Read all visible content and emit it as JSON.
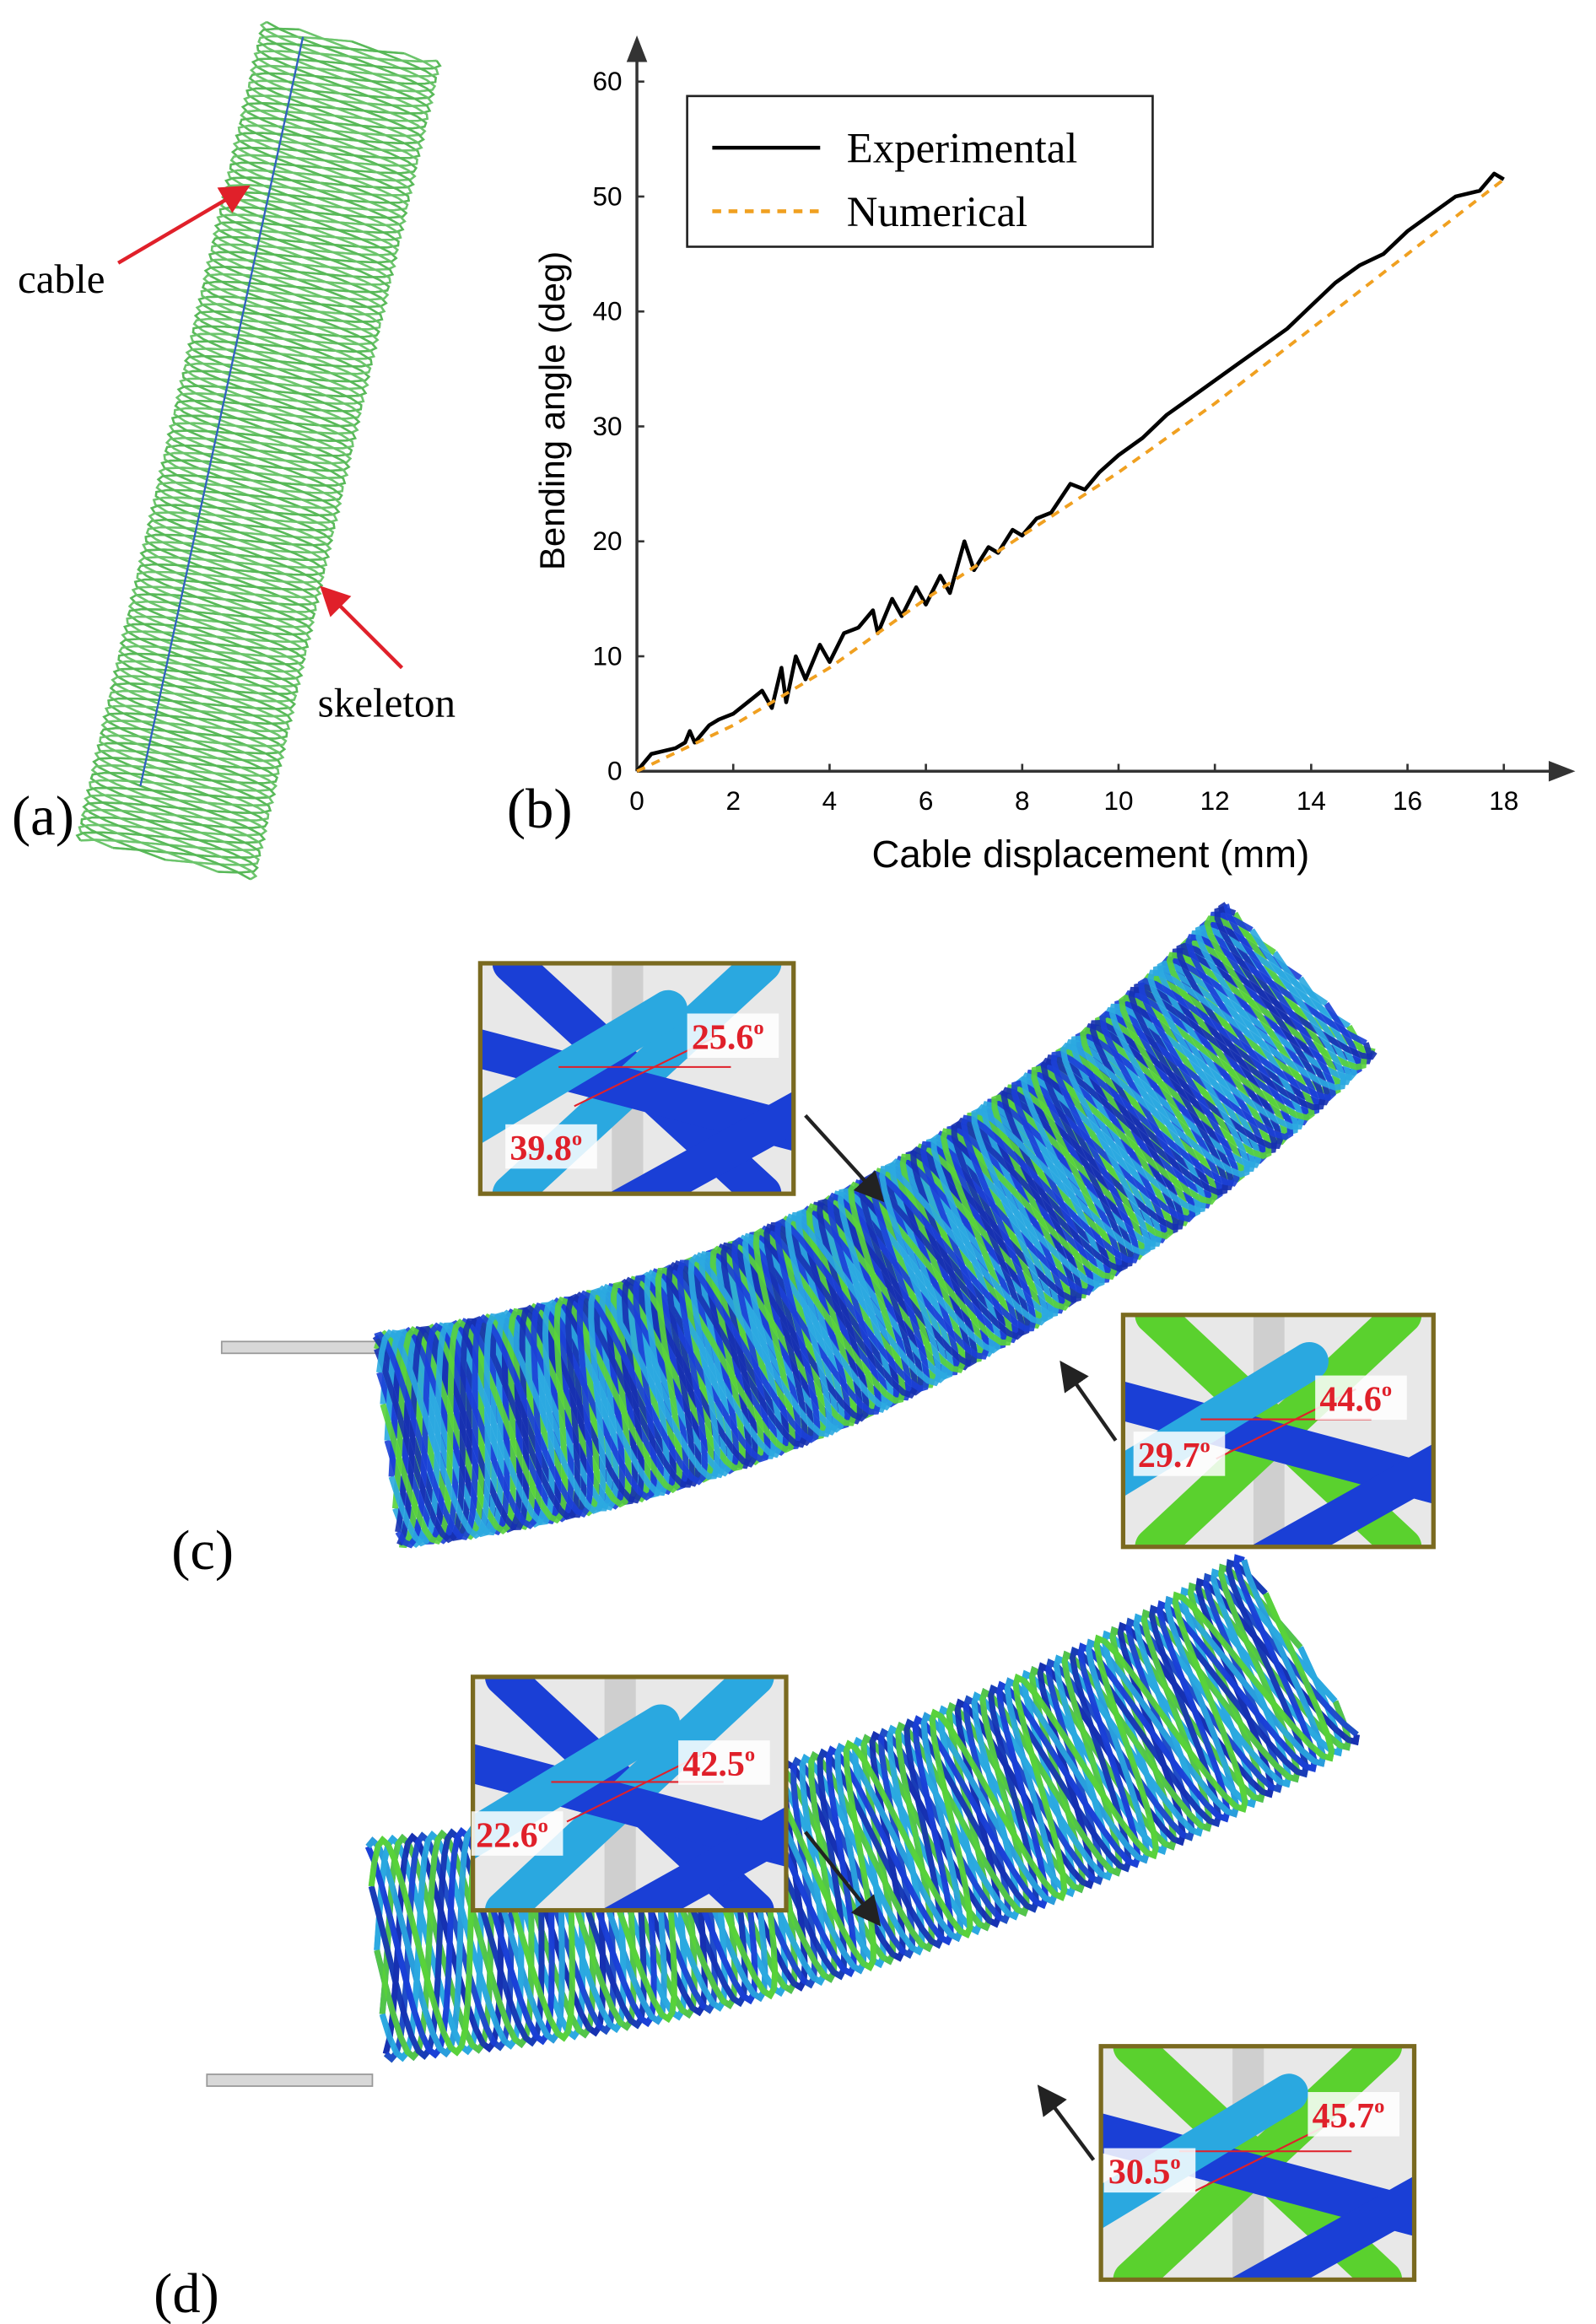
{
  "chart_data": {
    "type": "line",
    "x_label": "Cable displacement (mm)",
    "y_label": "Bending angle (deg)",
    "xlim": [
      0,
      19.3
    ],
    "ylim": [
      0,
      63.5
    ],
    "xticks": [
      0,
      2,
      4,
      6,
      8,
      10,
      12,
      14,
      16,
      18
    ],
    "yticks": [
      0,
      10,
      20,
      30,
      40,
      50,
      60
    ],
    "legend": "top-left",
    "grid": false,
    "series": [
      {
        "name": "Experimental",
        "color": "#000000",
        "dashed": false,
        "x": [
          0,
          0.3,
          0.8,
          1,
          1.1,
          1.2,
          1.5,
          1.7,
          2,
          2.3,
          2.6,
          2.8,
          3,
          3.1,
          3.3,
          3.5,
          3.8,
          4,
          4.3,
          4.6,
          4.9,
          5,
          5.3,
          5.5,
          5.8,
          6,
          6.3,
          6.5,
          6.8,
          7,
          7.3,
          7.5,
          7.8,
          8,
          8.3,
          8.6,
          9,
          9.3,
          9.6,
          10,
          10.5,
          11,
          11.5,
          12,
          12.5,
          13,
          13.5,
          14,
          14.5,
          15,
          15.5,
          16,
          16.5,
          17,
          17.5,
          17.8,
          18
        ],
        "values": [
          0,
          1.5,
          2,
          2.5,
          3.5,
          2.5,
          4,
          4.5,
          5,
          6,
          7,
          5.5,
          9,
          6,
          10,
          8,
          11,
          9.5,
          12,
          12.5,
          14,
          12,
          15,
          13.5,
          16,
          14.5,
          17,
          15.5,
          20,
          17.5,
          19.5,
          19,
          21,
          20.5,
          22,
          22.5,
          25,
          24.5,
          26,
          27.5,
          29,
          31,
          32.5,
          34,
          35.5,
          37,
          38.5,
          40.5,
          42.5,
          44,
          45,
          47,
          48.5,
          50,
          50.5,
          52,
          51.5
        ]
      },
      {
        "name": "Numerical",
        "color": "#f0a020",
        "dashed": true,
        "x": [
          0,
          2,
          4,
          6,
          8,
          10,
          12,
          14,
          16,
          18
        ],
        "values": [
          0,
          4,
          9,
          15,
          20.5,
          26,
          32,
          38.5,
          45,
          51.5
        ]
      }
    ]
  },
  "panels": {
    "a": "(a)",
    "b": "(b)",
    "c": "(c)",
    "d": "(d)"
  },
  "annotations": {
    "cable": "cable",
    "skeleton": "skeleton"
  },
  "angles": {
    "c": [
      {
        "value": "25.6",
        "sup": "o"
      },
      {
        "value": "39.8",
        "sup": "o"
      },
      {
        "value": "44.6",
        "sup": "o"
      },
      {
        "value": "29.7",
        "sup": "o"
      }
    ],
    "d": [
      {
        "value": "42.5",
        "sup": "o"
      },
      {
        "value": "22.6",
        "sup": "o"
      },
      {
        "value": "45.7",
        "sup": "o"
      },
      {
        "value": "30.5",
        "sup": "o"
      }
    ]
  }
}
